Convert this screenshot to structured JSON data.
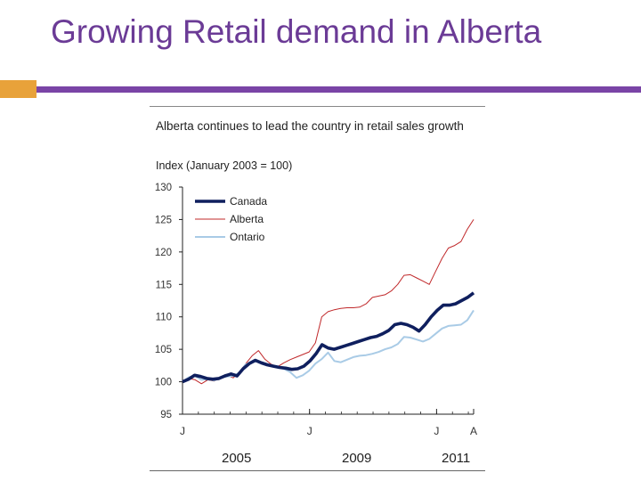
{
  "slide": {
    "title": "Growing Retail demand in Alberta"
  },
  "colors": {
    "title": "#6b3b96",
    "accent_bar": "#7a44a6",
    "accent_block": "#e8a23a",
    "canada": "#0f1f5e",
    "alberta": "#c0282a",
    "ontario": "#a9cbe6"
  },
  "chart_data": {
    "type": "line",
    "title": "Alberta continues to lead the country in retail sales growth",
    "ylabel": "Index (January 2003 = 100)",
    "ylim": [
      95,
      130
    ],
    "yticks": [
      95,
      100,
      105,
      110,
      115,
      120,
      125,
      130
    ],
    "x_tick_labels": [
      {
        "label": "J",
        "at": 0
      },
      {
        "label": "J",
        "at": 24
      },
      {
        "label": "J",
        "at": 48
      },
      {
        "label": "A",
        "at": 55
      }
    ],
    "year_labels": [
      "2005",
      "2009",
      "2011"
    ],
    "legend_placement": "top-left",
    "grid": false,
    "series": [
      {
        "name": "Canada",
        "color": "#0f1f5e",
        "values": [
          100,
          100.4,
          101,
          100.8,
          100.5,
          100.4,
          100.5,
          100.9,
          101.2,
          100.9,
          102,
          102.8,
          103.3,
          102.9,
          102.6,
          102.4,
          102.2,
          102.1,
          101.9,
          102,
          102.4,
          103.2,
          104.3,
          105.7,
          105.2,
          105,
          105.3,
          105.6,
          105.9,
          106.2,
          106.5,
          106.8,
          107,
          107.4,
          107.9,
          108.8,
          109,
          108.8,
          108.4,
          107.8,
          108.8,
          110,
          111,
          111.8,
          111.8,
          112,
          112.5,
          113,
          113.7
        ]
      },
      {
        "name": "Alberta",
        "color": "#c0282a",
        "values": [
          100,
          100.5,
          100.3,
          99.7,
          100.3,
          100.1,
          100.7,
          101,
          100.6,
          101.5,
          102.8,
          104,
          104.8,
          103.5,
          102.7,
          102.3,
          102.9,
          103.4,
          103.8,
          104.2,
          104.6,
          106,
          110,
          110.8,
          111.1,
          111.3,
          111.4,
          111.4,
          111.5,
          112,
          113,
          113.2,
          113.4,
          114,
          115,
          116.4,
          116.5,
          116,
          115.5,
          115,
          117,
          119,
          120.6,
          121,
          121.6,
          123.5,
          125
        ]
      },
      {
        "name": "Ontario",
        "color": "#a9cbe6",
        "values": [
          100,
          100.7,
          100.9,
          100.3,
          100.4,
          100.2,
          100.6,
          100.8,
          100.9,
          101.4,
          102.7,
          103,
          103.2,
          102.8,
          102.5,
          102.2,
          102,
          101.5,
          100.6,
          101,
          101.7,
          102.8,
          103.5,
          104.5,
          103.2,
          103,
          103.4,
          103.8,
          104,
          104.1,
          104.3,
          104.6,
          105,
          105.3,
          105.8,
          106.9,
          106.8,
          106.5,
          106.2,
          106.6,
          107.4,
          108.2,
          108.6,
          108.7,
          108.8,
          109.5,
          111
        ]
      }
    ]
  }
}
